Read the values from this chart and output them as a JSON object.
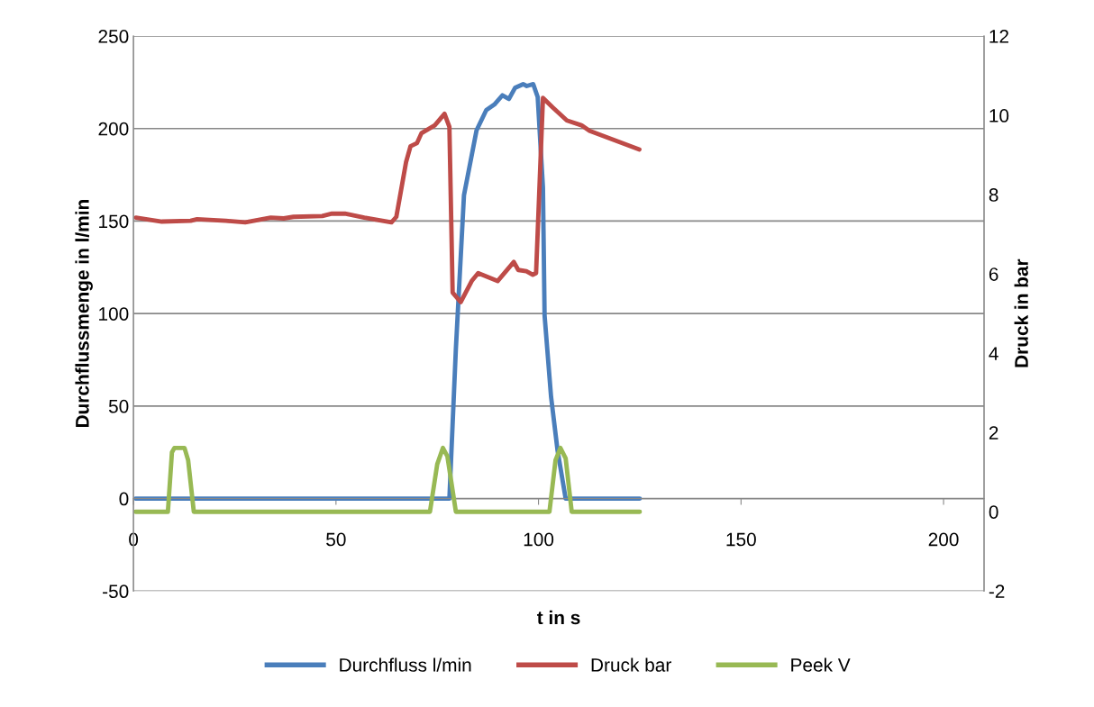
{
  "chart_data": {
    "type": "line",
    "xlabel": "t in s",
    "ylabel": "Durchflussmenge in l/min",
    "y2label": "Druck in bar",
    "xlim": [
      0,
      210
    ],
    "xticks": [
      0,
      50,
      100,
      150,
      200
    ],
    "ylim": [
      -50,
      250
    ],
    "yticks": [
      -50,
      0,
      50,
      100,
      150,
      200,
      250
    ],
    "y2lim": [
      -2,
      12
    ],
    "y2ticks": [
      -2,
      0,
      2,
      4,
      6,
      8,
      10,
      12
    ],
    "grid": "y",
    "legend": "bottom",
    "marker": "none",
    "line_style": "solid",
    "series": [
      {
        "name": "Durchfluss l/min",
        "color": "#4a7ebb",
        "x": [
          0.5,
          78,
          79.6,
          81.6,
          84.7,
          87.1,
          89.1,
          91.1,
          92.7,
          94.2,
          96.2,
          97.1,
          98.7,
          99.8,
          101.1,
          101.5,
          103.1,
          104.7,
          106.7,
          125
        ],
        "values": [
          0,
          0,
          81,
          164,
          199,
          210,
          213,
          218,
          216,
          222,
          224,
          223,
          224,
          217,
          168,
          99,
          55,
          26,
          0,
          0
        ]
      },
      {
        "name": "Druck bar",
        "color": "#be4b48",
        "axis": "y2",
        "x": [
          0.6,
          7,
          14.1,
          15.7,
          22.8,
          27.6,
          33.9,
          37.1,
          39.5,
          46.6,
          49,
          52.2,
          57,
          63.7,
          64.9,
          67.3,
          68.4,
          70,
          71.1,
          74.4,
          76.8,
          78,
          78.8,
          80.8,
          83.5,
          85.1,
          89.9,
          93.9,
          95,
          97,
          98.6,
          99.4,
          101.1,
          103.5,
          107,
          110.6,
          112.6,
          124.9
        ],
        "values": [
          7.42,
          7.32,
          7.34,
          7.38,
          7.34,
          7.3,
          7.42,
          7.4,
          7.44,
          7.46,
          7.52,
          7.52,
          7.42,
          7.3,
          7.44,
          8.82,
          9.22,
          9.3,
          9.55,
          9.75,
          10.04,
          9.71,
          5.53,
          5.29,
          5.82,
          6.02,
          5.82,
          6.3,
          6.1,
          6.07,
          5.98,
          6.02,
          10.44,
          10.2,
          9.87,
          9.75,
          9.61,
          9.14
        ]
      },
      {
        "name": "Peek V",
        "color": "#98b954",
        "axis": "y2",
        "x": [
          0.5,
          8.5,
          9.5,
          10.1,
          12.6,
          13.5,
          14.9,
          73.2,
          75,
          76.4,
          77.5,
          79.6,
          102.7,
          104.2,
          105.4,
          106.7,
          108.2,
          125
        ],
        "values": [
          0,
          0,
          1.5,
          1.61,
          1.61,
          1.3,
          0,
          0,
          1.2,
          1.61,
          1.4,
          0,
          0,
          1.3,
          1.61,
          1.35,
          0,
          0
        ]
      }
    ]
  }
}
